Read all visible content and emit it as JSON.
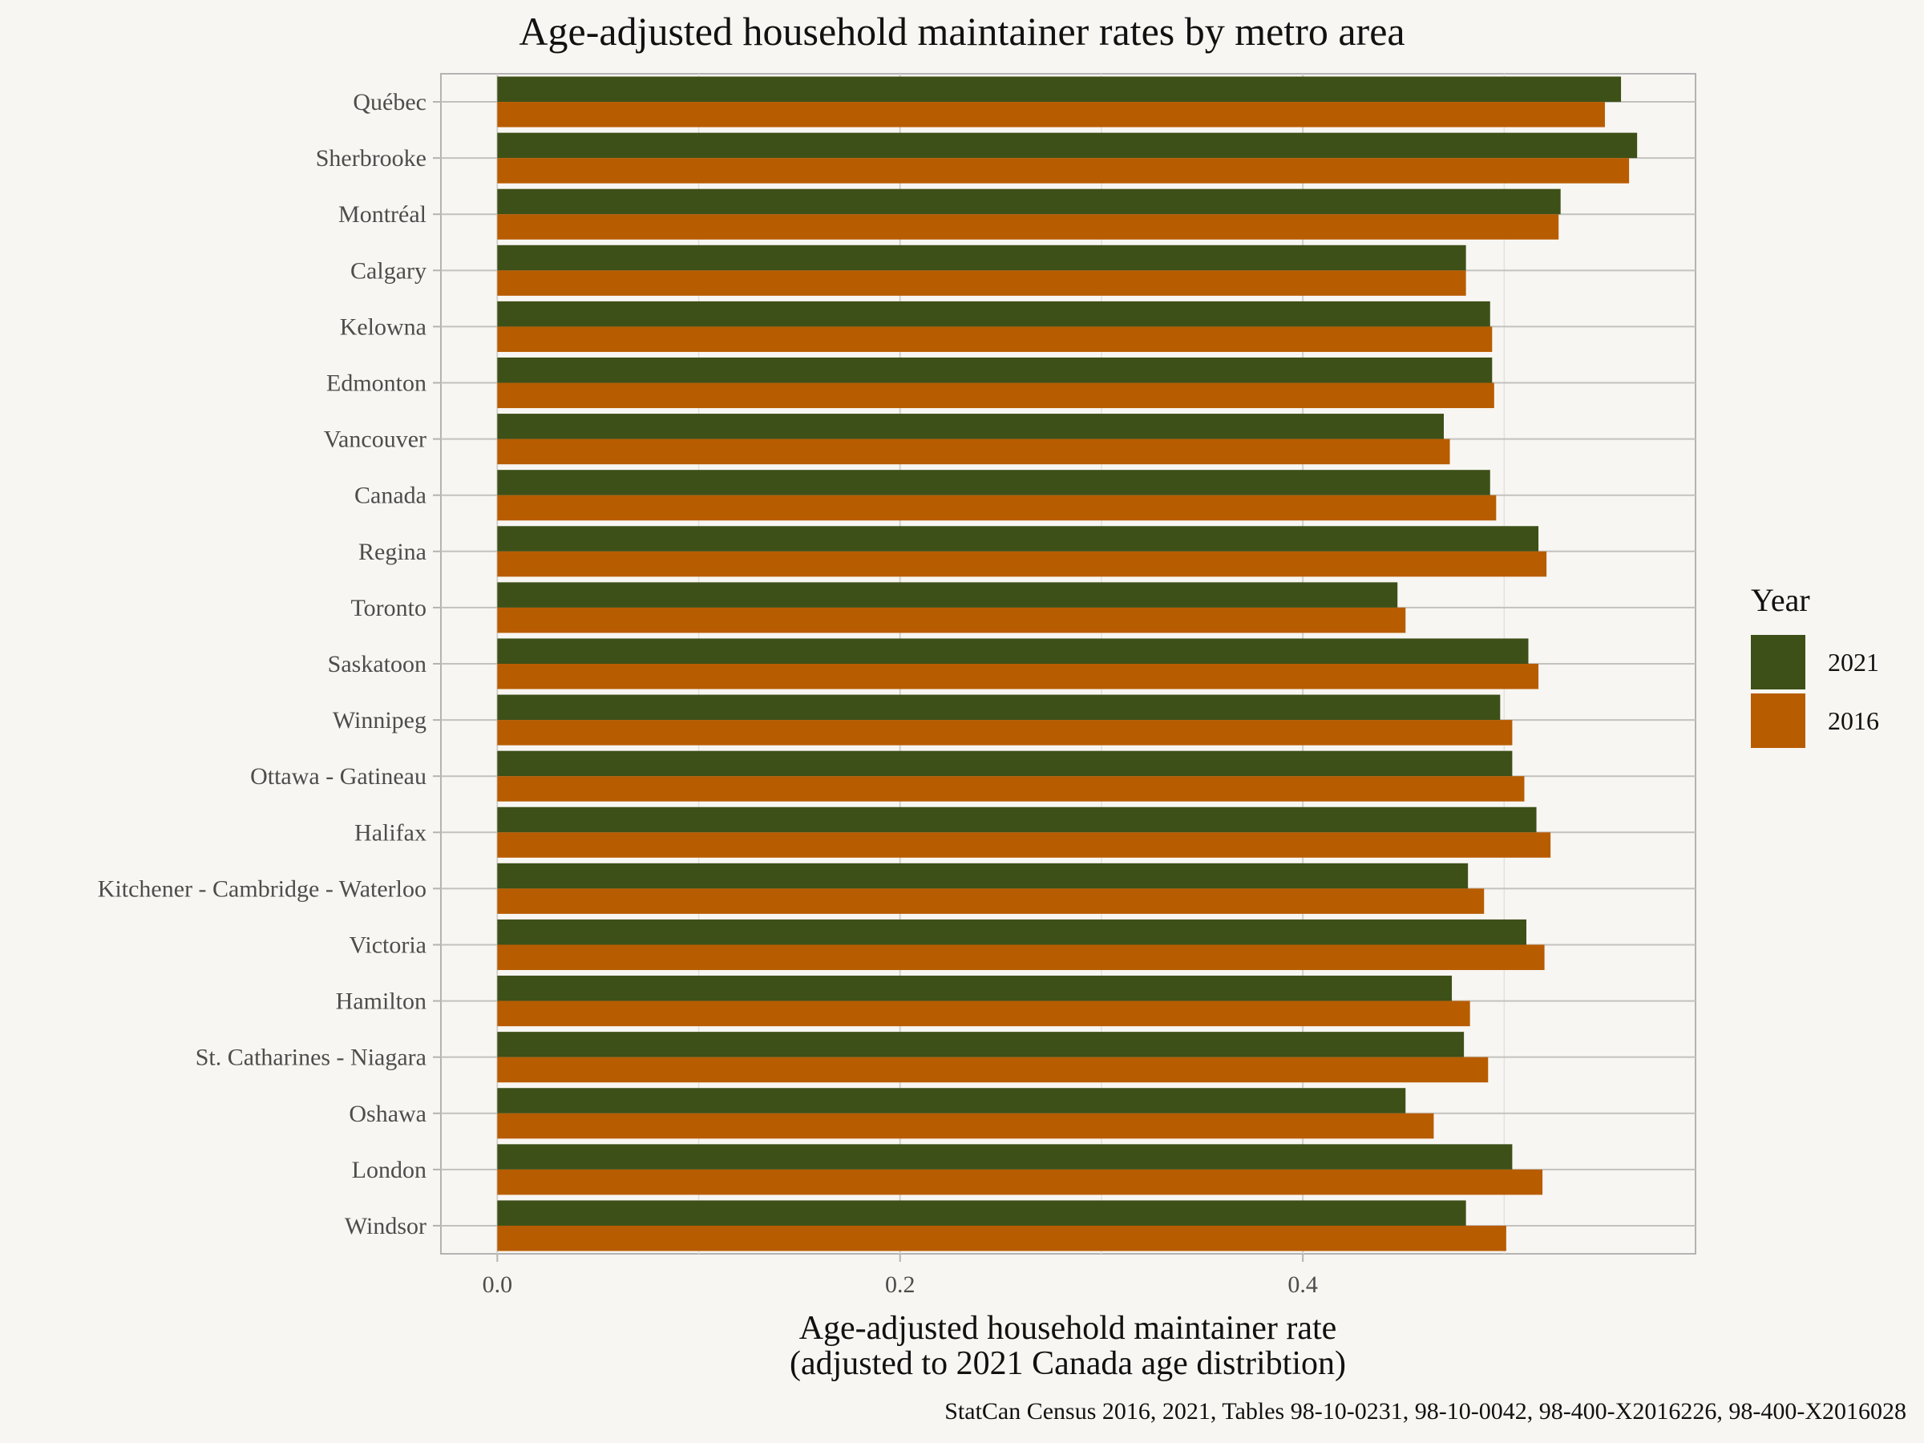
{
  "chart_data": {
    "type": "bar",
    "orientation": "horizontal",
    "title": "Age-adjusted household maintainer rates by metro area",
    "xlabel": "Age-adjusted household maintainer rate",
    "xlabel_sub": "(adjusted to 2021 Canada age distribtion)",
    "caption": "StatCan Census 2016, 2021, Tables 98-10-0231, 98-10-0042, 98-400-X2016226, 98-400-X2016028",
    "xlim": [
      -0.028,
      0.595
    ],
    "x_ticks": [
      0.0,
      0.2,
      0.4
    ],
    "x_tick_labels": [
      "0.0",
      "0.2",
      "0.4"
    ],
    "grid": true,
    "legend": {
      "title": "Year",
      "position": "right"
    },
    "categories": [
      "Québec",
      "Sherbrooke",
      "Montréal",
      "Calgary",
      "Kelowna",
      "Edmonton",
      "Vancouver",
      "Canada",
      "Regina",
      "Toronto",
      "Saskatoon",
      "Winnipeg",
      "Ottawa - Gatineau",
      "Halifax",
      "Kitchener - Cambridge - Waterloo",
      "Victoria",
      "Hamilton",
      "St. Catharines - Niagara",
      "Oshawa",
      "London",
      "Windsor"
    ],
    "series": [
      {
        "name": "2021",
        "color": "#3d5018",
        "values": [
          0.558,
          0.566,
          0.528,
          0.481,
          0.493,
          0.494,
          0.47,
          0.493,
          0.517,
          0.447,
          0.512,
          0.498,
          0.504,
          0.516,
          0.482,
          0.511,
          0.474,
          0.48,
          0.451,
          0.504,
          0.481
        ]
      },
      {
        "name": "2016",
        "color": "#b85c00",
        "values": [
          0.55,
          0.562,
          0.527,
          0.481,
          0.494,
          0.495,
          0.473,
          0.496,
          0.521,
          0.451,
          0.517,
          0.504,
          0.51,
          0.523,
          0.49,
          0.52,
          0.483,
          0.492,
          0.465,
          0.519,
          0.501
        ]
      }
    ]
  }
}
